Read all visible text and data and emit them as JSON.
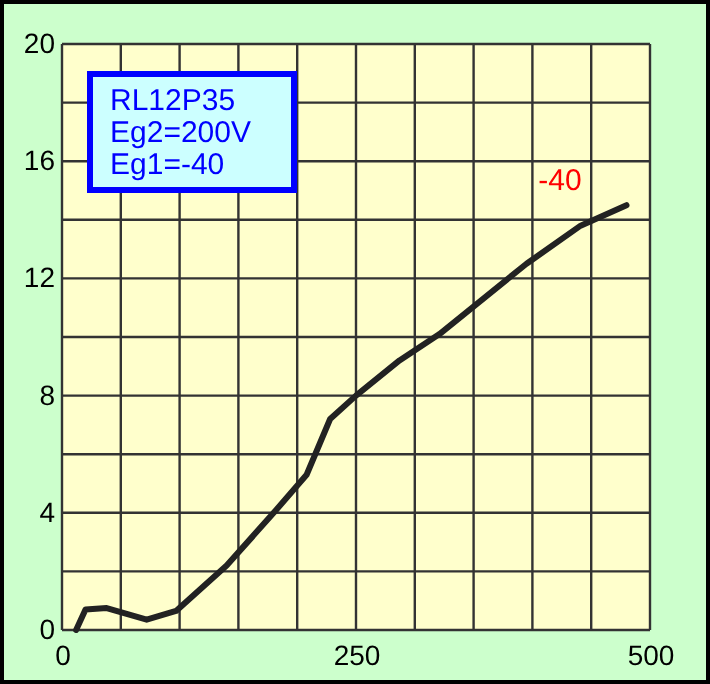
{
  "chart_data": {
    "type": "line",
    "x": [
      12,
      20,
      38,
      72,
      97,
      140,
      180,
      208,
      228,
      250,
      287,
      321,
      395,
      441,
      480
    ],
    "series": [
      {
        "color": "#222222",
        "values": [
          0,
          0.7,
          0.75,
          0.35,
          0.65,
          2.2,
          4.0,
          5.3,
          7.2,
          8.0,
          9.2,
          10.1,
          12.5,
          13.8,
          14.5
        ]
      }
    ],
    "xlim": [
      0,
      500
    ],
    "xticks": [
      0,
      {
        "value": 50,
        "label": null
      },
      {
        "value": 100,
        "label": null
      },
      {
        "value": 150,
        "label": null
      },
      {
        "value": 200,
        "label": null
      },
      250,
      {
        "value": 300,
        "label": null
      },
      {
        "value": 350,
        "label": null
      },
      {
        "value": 400,
        "label": null
      },
      {
        "value": 450,
        "label": null
      },
      500
    ],
    "ylim": [
      0,
      20
    ],
    "yticks": [
      0,
      {
        "value": 2,
        "label": null
      },
      4,
      {
        "value": 6,
        "label": null
      },
      8,
      {
        "value": 10,
        "label": null
      },
      12,
      {
        "value": 14,
        "label": null
      },
      16,
      {
        "value": 18,
        "label": null
      },
      20
    ],
    "grid": true,
    "marker": "none",
    "line_style": "solid",
    "annotations": [
      "RL12P35",
      "Eg2=200V",
      "Eg1=-40",
      "-40"
    ]
  }
}
